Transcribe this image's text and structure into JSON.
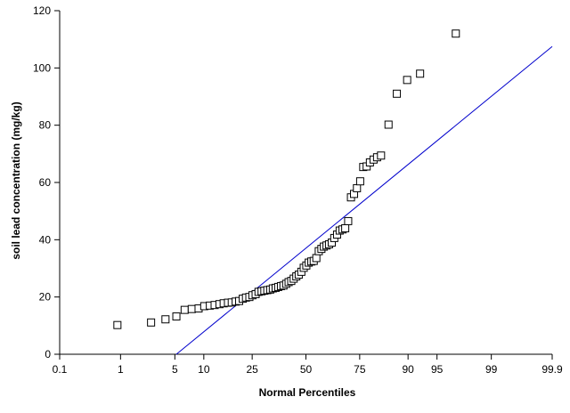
{
  "chart_data": {
    "type": "scatter",
    "title": "",
    "xlabel": "Normal Percentiles",
    "ylabel": "soil lead concentration (mg/kg)",
    "x_scale": "normal-probability",
    "x_ticks": [
      0.1,
      1,
      5,
      10,
      25,
      50,
      75,
      90,
      95,
      99,
      99.9
    ],
    "x_tick_labels": [
      "0.1",
      "1",
      "5",
      "10",
      "25",
      "50",
      "75",
      "90",
      "95",
      "99",
      "99.9"
    ],
    "y_ticks": [
      0,
      20,
      40,
      60,
      80,
      100,
      120
    ],
    "y_tick_labels": [
      "0",
      "20",
      "40",
      "60",
      "80",
      "100",
      "120"
    ],
    "xlim": [
      0.1,
      99.9
    ],
    "ylim": [
      0,
      120
    ],
    "grid": false,
    "legend": "none",
    "marker": "open-square",
    "colors": {
      "points": "#000000",
      "reference_line": "#0000cc",
      "axes": "#000000"
    },
    "points": [
      {
        "x": 0.9,
        "y": 10.2
      },
      {
        "x": 2.6,
        "y": 11.1
      },
      {
        "x": 3.9,
        "y": 12.2
      },
      {
        "x": 5.2,
        "y": 13.2
      },
      {
        "x": 6.4,
        "y": 15.5
      },
      {
        "x": 7.6,
        "y": 15.8
      },
      {
        "x": 8.9,
        "y": 16.0
      },
      {
        "x": 10.1,
        "y": 16.8
      },
      {
        "x": 11.4,
        "y": 17.0
      },
      {
        "x": 12.6,
        "y": 17.2
      },
      {
        "x": 13.9,
        "y": 17.5
      },
      {
        "x": 15.1,
        "y": 17.8
      },
      {
        "x": 16.4,
        "y": 18.0
      },
      {
        "x": 17.6,
        "y": 18.1
      },
      {
        "x": 18.9,
        "y": 18.4
      },
      {
        "x": 20.1,
        "y": 18.6
      },
      {
        "x": 21.4,
        "y": 19.4
      },
      {
        "x": 22.6,
        "y": 19.8
      },
      {
        "x": 23.9,
        "y": 20.0
      },
      {
        "x": 25.1,
        "y": 20.6
      },
      {
        "x": 26.4,
        "y": 21.0
      },
      {
        "x": 27.6,
        "y": 21.8
      },
      {
        "x": 28.9,
        "y": 22.0
      },
      {
        "x": 30.1,
        "y": 22.2
      },
      {
        "x": 31.4,
        "y": 22.4
      },
      {
        "x": 32.7,
        "y": 22.6
      },
      {
        "x": 33.9,
        "y": 23.0
      },
      {
        "x": 35.2,
        "y": 23.2
      },
      {
        "x": 36.4,
        "y": 23.5
      },
      {
        "x": 37.7,
        "y": 23.8
      },
      {
        "x": 38.9,
        "y": 24.0
      },
      {
        "x": 40.2,
        "y": 24.6
      },
      {
        "x": 41.4,
        "y": 25.2
      },
      {
        "x": 42.7,
        "y": 25.6
      },
      {
        "x": 43.9,
        "y": 26.4
      },
      {
        "x": 45.2,
        "y": 27.2
      },
      {
        "x": 46.4,
        "y": 27.8
      },
      {
        "x": 47.7,
        "y": 28.8
      },
      {
        "x": 48.9,
        "y": 30.2
      },
      {
        "x": 50.2,
        "y": 31.0
      },
      {
        "x": 51.4,
        "y": 32.0
      },
      {
        "x": 52.7,
        "y": 32.4
      },
      {
        "x": 53.9,
        "y": 32.6
      },
      {
        "x": 55.2,
        "y": 33.6
      },
      {
        "x": 56.4,
        "y": 36.0
      },
      {
        "x": 57.7,
        "y": 36.8
      },
      {
        "x": 58.9,
        "y": 37.6
      },
      {
        "x": 60.2,
        "y": 38.0
      },
      {
        "x": 61.4,
        "y": 38.4
      },
      {
        "x": 62.7,
        "y": 39.0
      },
      {
        "x": 63.9,
        "y": 40.6
      },
      {
        "x": 65.2,
        "y": 41.8
      },
      {
        "x": 66.4,
        "y": 43.2
      },
      {
        "x": 67.7,
        "y": 43.6
      },
      {
        "x": 68.9,
        "y": 44.0
      },
      {
        "x": 70.2,
        "y": 46.5
      },
      {
        "x": 71.4,
        "y": 54.8
      },
      {
        "x": 72.7,
        "y": 56.0
      },
      {
        "x": 73.9,
        "y": 58.0
      },
      {
        "x": 75.2,
        "y": 60.4
      },
      {
        "x": 76.4,
        "y": 65.4
      },
      {
        "x": 77.7,
        "y": 65.6
      },
      {
        "x": 78.9,
        "y": 67.0
      },
      {
        "x": 80.2,
        "y": 68.0
      },
      {
        "x": 81.4,
        "y": 68.8
      },
      {
        "x": 82.7,
        "y": 69.4
      },
      {
        "x": 85.0,
        "y": 80.2
      },
      {
        "x": 87.3,
        "y": 91.0
      },
      {
        "x": 89.8,
        "y": 95.8
      },
      {
        "x": 92.4,
        "y": 98.0
      },
      {
        "x": 97.0,
        "y": 112.0
      }
    ],
    "reference_line": [
      {
        "x": 5.2,
        "y": 0
      },
      {
        "x": 99.9,
        "y": 107.5
      }
    ]
  }
}
